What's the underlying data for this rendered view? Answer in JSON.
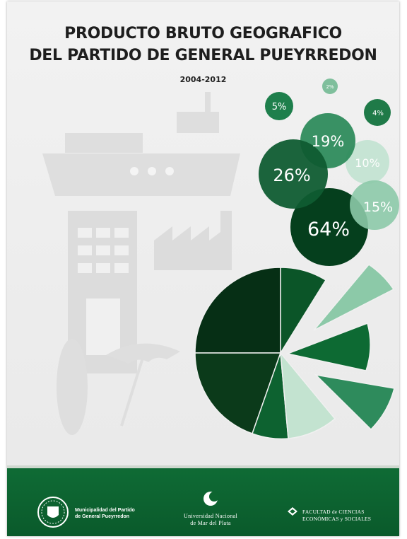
{
  "cover": {
    "title_line1": "PRODUCTO BRUTO GEOGRAFICO",
    "title_line2": "DEL PARTIDO DE GENERAL PUEYRREDON",
    "years": "2004-2012"
  },
  "bubbles": [
    {
      "label": "2%",
      "color": "#7fbf9c"
    },
    {
      "label": "5%",
      "color": "#1e7f4c"
    },
    {
      "label": "4%",
      "color": "#1f7a48"
    },
    {
      "label": "19%",
      "color": "#2e8b5c"
    },
    {
      "label": "10%",
      "color": "#c6e4d4"
    },
    {
      "label": "26%",
      "color": "#0f5c31"
    },
    {
      "label": "15%",
      "color": "#8cc9a8"
    },
    {
      "label": "64%",
      "color": "#053f1d"
    }
  ],
  "footer": {
    "municipality_line1": "Municipalidad del Partido",
    "municipality_line2": "de General Pueyrredon",
    "university_line1": "Universidad Nacional",
    "university_line2": "de Mar del Plata",
    "faculty_line1": "FACULTAD de CIENCIAS",
    "faculty_line2": "ECONÓMICAS y SOCIALES"
  },
  "colors": {
    "footer_green": "#0c6230",
    "dark_green": "#053f1d",
    "light_green": "#c6e4d4"
  },
  "icons": [
    "ship-icon",
    "building-icon",
    "factory-icon",
    "surfboard-icon",
    "umbrella-icon",
    "shield-crest-icon",
    "crescent-logo-icon",
    "faculty-emblem-icon"
  ]
}
